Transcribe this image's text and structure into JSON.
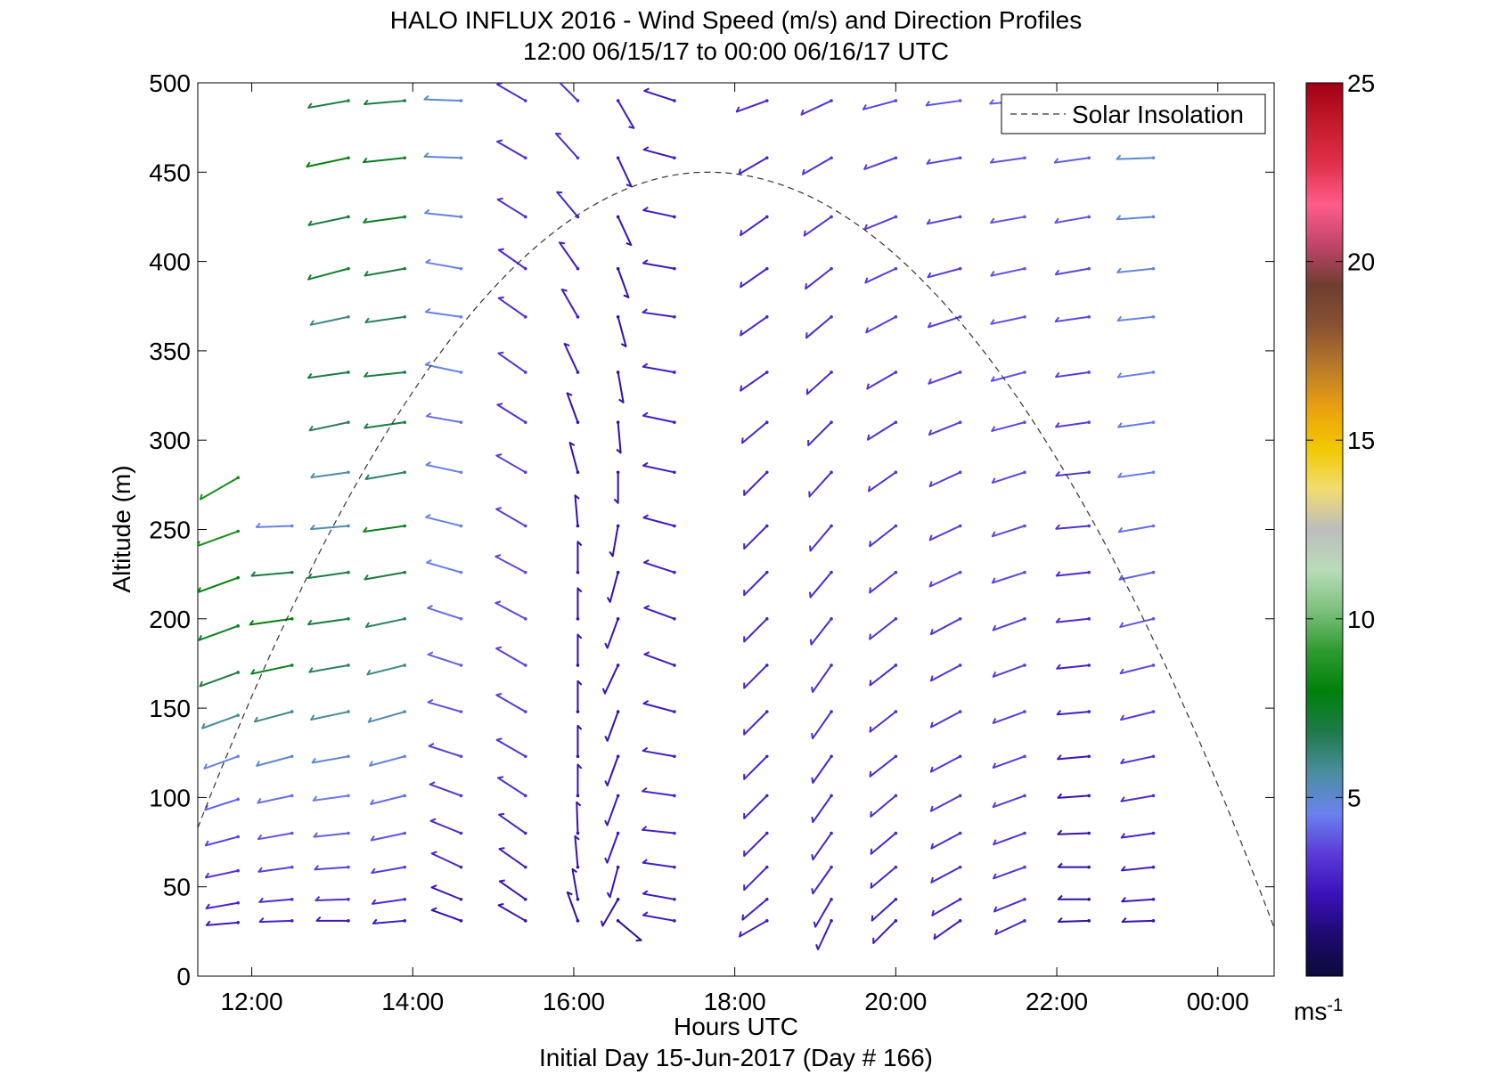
{
  "chart_data": {
    "type": "wind_barb_profile",
    "title": "HALO INFLUX 2016 - Wind Speed (m/s) and Direction Profiles",
    "subtitle": "12:00 06/15/17 to 00:00 06/16/17  UTC",
    "xlabel": "Hours UTC",
    "footer": "Initial Day 15-Jun-2017 (Day # 166)",
    "ylabel": "Altitude (m)",
    "x_range_hours": [
      11.33,
      24.7
    ],
    "ylim": [
      0,
      500
    ],
    "x_tick_labels": [
      "12:00",
      "14:00",
      "16:00",
      "18:00",
      "20:00",
      "22:00",
      "00:00"
    ],
    "x_tick_hours": [
      12,
      14,
      16,
      18,
      20,
      22,
      24
    ],
    "y_ticks": [
      0,
      50,
      100,
      150,
      200,
      250,
      300,
      350,
      400,
      450,
      500
    ],
    "legend": {
      "label": "Solar Insolation",
      "placement": "top-right",
      "style": "dashed"
    },
    "solar_insolation": {
      "start_hour": 11.33,
      "peak_hour": 17.67,
      "end_hour": 24.7,
      "start_alt": 83,
      "peak_alt": 450,
      "end_alt": 27
    },
    "colorbar": {
      "range": [
        0,
        25
      ],
      "tick_labels": [
        "5",
        "10",
        "15",
        "20",
        "25"
      ],
      "tick_values": [
        5,
        10,
        15,
        20,
        25
      ],
      "unit_label": "ms",
      "unit_exponent": "-1",
      "colors": [
        "#0b0b3a",
        "#1e0a6e",
        "#3a10b8",
        "#5a3ad8",
        "#6a82ee",
        "#4a8fa0",
        "#1f7a4a",
        "#00800a",
        "#2e9a2e",
        "#7cc07c",
        "#b9dcb9",
        "#bdbdbd",
        "#f2dc70",
        "#f2c800",
        "#eaa010",
        "#b87a2a",
        "#8a5232",
        "#6e3e30",
        "#c0456a",
        "#ff5c8a",
        "#e0304a",
        "#c41a2a",
        "#a00014"
      ]
    },
    "wind_field_note": "",
    "series": [
      {
        "hour": 11.83,
        "altitudes": [
          30,
          41,
          59,
          78,
          99,
          123,
          146,
          170,
          196,
          223,
          249,
          279
        ],
        "speed": [
          2.5,
          2.8,
          3.2,
          3.5,
          4.0,
          4.6,
          5.8,
          7.0,
          7.5,
          8.0,
          8.5,
          8.5
        ],
        "dir_deg": [
          265,
          260,
          258,
          255,
          252,
          250,
          250,
          250,
          250,
          250,
          250,
          240
        ]
      },
      {
        "hour": 12.5,
        "altitudes": [
          31,
          43,
          61,
          80,
          101,
          123,
          148,
          174,
          200,
          226,
          252
        ],
        "speed": [
          2.8,
          3.0,
          3.5,
          3.8,
          4.2,
          5.0,
          6.0,
          7.5,
          8.0,
          7.0,
          4.5
        ],
        "dir_deg": [
          268,
          265,
          262,
          260,
          258,
          255,
          255,
          258,
          262,
          265,
          268
        ]
      },
      {
        "hour": 13.2,
        "altitudes": [
          31,
          43,
          61,
          80,
          101,
          123,
          148,
          174,
          200,
          226,
          252,
          282,
          310,
          338,
          369,
          396,
          425,
          458,
          490
        ],
        "speed": [
          2.5,
          3.0,
          3.5,
          4.0,
          4.4,
          5.0,
          5.8,
          6.5,
          7.0,
          7.0,
          5.5,
          5.5,
          6.5,
          7.0,
          6.0,
          7.5,
          7.0,
          8.0,
          7.0
        ],
        "dir_deg": [
          270,
          268,
          266,
          264,
          262,
          260,
          258,
          260,
          262,
          262,
          265,
          262,
          258,
          262,
          258,
          255,
          258,
          258,
          260
        ]
      },
      {
        "hour": 13.9,
        "altitudes": [
          31,
          43,
          61,
          80,
          101,
          123,
          148,
          174,
          200,
          226,
          252,
          282,
          310,
          338,
          369,
          396,
          425,
          458,
          490
        ],
        "speed": [
          2.5,
          3.0,
          3.4,
          3.8,
          4.2,
          4.8,
          5.5,
          6.0,
          6.5,
          7.0,
          7.5,
          6.5,
          7.0,
          7.0,
          6.5,
          7.0,
          7.5,
          7.5,
          7.0
        ],
        "dir_deg": [
          265,
          262,
          260,
          258,
          256,
          255,
          254,
          256,
          258,
          260,
          262,
          260,
          262,
          264,
          262,
          260,
          262,
          264,
          265
        ]
      },
      {
        "hour": 14.6,
        "altitudes": [
          31,
          43,
          61,
          80,
          101,
          123,
          148,
          174,
          200,
          226,
          252,
          282,
          310,
          338,
          369,
          396,
          425,
          458,
          490
        ],
        "speed": [
          2.2,
          2.5,
          2.8,
          3.0,
          3.2,
          3.5,
          3.8,
          4.0,
          4.2,
          4.5,
          4.8,
          4.5,
          4.2,
          4.8,
          4.5,
          4.5,
          4.8,
          5.0,
          5.0
        ],
        "dir_deg": [
          290,
          292,
          295,
          292,
          290,
          288,
          286,
          288,
          288,
          286,
          284,
          282,
          280,
          282,
          278,
          280,
          276,
          272,
          272
        ]
      },
      {
        "hour": 15.4,
        "altitudes": [
          31,
          43,
          61,
          80,
          101,
          123,
          148,
          174,
          200,
          226,
          252,
          282,
          310,
          338,
          369,
          396,
          425,
          458,
          490
        ],
        "speed": [
          2.2,
          2.4,
          2.6,
          2.8,
          3.0,
          3.2,
          3.4,
          3.5,
          3.6,
          3.6,
          3.5,
          3.4,
          3.2,
          3.2,
          3.0,
          3.0,
          3.0,
          3.0,
          3.0
        ],
        "dir_deg": [
          300,
          305,
          305,
          305,
          303,
          300,
          300,
          300,
          298,
          298,
          300,
          300,
          302,
          305,
          305,
          305,
          302,
          300,
          300
        ]
      },
      {
        "hour": 16.05,
        "altitudes": [
          31,
          43,
          61,
          80,
          101,
          123,
          148,
          174,
          200,
          226,
          252,
          282,
          310,
          338,
          369,
          396,
          425,
          458,
          490
        ],
        "speed": [
          1.8,
          2.0,
          2.2,
          2.2,
          2.2,
          2.0,
          2.0,
          2.0,
          2.0,
          2.0,
          2.0,
          2.0,
          2.2,
          2.4,
          2.5,
          2.6,
          2.8,
          3.0,
          3.0
        ],
        "dir_deg": [
          340,
          350,
          355,
          358,
          0,
          0,
          0,
          0,
          0,
          0,
          355,
          345,
          340,
          335,
          330,
          325,
          320,
          318,
          315
        ]
      },
      {
        "hour": 16.55,
        "altitudes": [
          31,
          43,
          61,
          80,
          101,
          123,
          148,
          174,
          200,
          226,
          252,
          282,
          310,
          338,
          369,
          396,
          425,
          458,
          490
        ],
        "speed": [
          1.8,
          2.0,
          2.2,
          2.4,
          2.4,
          2.2,
          2.2,
          2.2,
          2.2,
          2.0,
          2.0,
          2.0,
          2.0,
          2.0,
          2.0,
          2.0,
          2.2,
          2.4,
          2.5
        ],
        "dir_deg": [
          130,
          210,
          195,
          200,
          200,
          200,
          200,
          205,
          200,
          195,
          190,
          180,
          175,
          170,
          165,
          160,
          155,
          155,
          150
        ]
      },
      {
        "hour": 17.25,
        "altitudes": [
          31,
          43,
          61,
          80,
          101,
          123,
          148,
          174,
          200,
          226,
          252,
          282,
          310,
          338,
          369,
          396,
          425,
          458,
          490
        ],
        "speed": [
          2.5,
          2.5,
          2.6,
          2.8,
          2.8,
          2.6,
          2.6,
          2.6,
          2.6,
          2.6,
          2.6,
          2.6,
          2.6,
          2.6,
          2.6,
          2.5,
          2.5,
          2.5,
          2.5
        ],
        "dir_deg": [
          280,
          280,
          278,
          276,
          278,
          280,
          285,
          290,
          290,
          288,
          285,
          282,
          282,
          280,
          278,
          280,
          282,
          285,
          288
        ]
      },
      {
        "hour": 18.4,
        "altitudes": [
          31,
          43,
          61,
          80,
          101,
          123,
          148,
          174,
          200,
          226,
          252,
          282,
          310,
          338,
          369,
          396,
          425,
          458,
          490
        ],
        "speed": [
          2.5,
          2.6,
          2.8,
          2.8,
          2.8,
          2.8,
          2.8,
          2.8,
          2.8,
          2.8,
          2.8,
          2.8,
          2.8,
          2.8,
          2.8,
          2.8,
          2.8,
          2.8,
          2.8
        ],
        "dir_deg": [
          240,
          230,
          225,
          225,
          225,
          225,
          225,
          225,
          225,
          225,
          225,
          225,
          230,
          235,
          235,
          235,
          235,
          240,
          250
        ]
      },
      {
        "hour": 19.2,
        "altitudes": [
          31,
          43,
          61,
          80,
          101,
          123,
          148,
          174,
          200,
          226,
          252,
          282,
          310,
          338,
          369,
          396,
          425,
          458,
          490
        ],
        "speed": [
          2.5,
          2.6,
          2.8,
          2.8,
          2.8,
          2.8,
          3.0,
          3.0,
          3.0,
          3.0,
          3.0,
          3.0,
          3.0,
          3.0,
          3.0,
          3.0,
          3.2,
          3.2,
          3.2
        ],
        "dir_deg": [
          205,
          210,
          215,
          215,
          215,
          215,
          215,
          215,
          218,
          220,
          220,
          222,
          225,
          228,
          230,
          232,
          235,
          240,
          245
        ]
      },
      {
        "hour": 20.0,
        "altitudes": [
          31,
          43,
          61,
          80,
          101,
          123,
          148,
          174,
          200,
          226,
          252,
          282,
          310,
          338,
          369,
          396,
          425,
          458,
          490
        ],
        "speed": [
          2.5,
          2.6,
          2.8,
          2.8,
          3.0,
          3.0,
          3.0,
          3.0,
          3.2,
          3.2,
          3.2,
          3.2,
          3.2,
          3.2,
          3.4,
          3.4,
          3.4,
          3.4,
          3.5
        ],
        "dir_deg": [
          225,
          228,
          230,
          230,
          230,
          232,
          232,
          232,
          232,
          232,
          232,
          235,
          238,
          240,
          242,
          245,
          248,
          250,
          255
        ]
      },
      {
        "hour": 20.8,
        "altitudes": [
          31,
          43,
          61,
          80,
          101,
          123,
          148,
          174,
          200,
          226,
          252,
          282,
          310,
          338,
          369,
          396,
          425,
          458,
          490
        ],
        "speed": [
          2.5,
          2.8,
          3.0,
          3.0,
          3.2,
          3.2,
          3.2,
          3.2,
          3.2,
          3.4,
          3.4,
          3.4,
          3.4,
          3.4,
          3.4,
          3.4,
          3.5,
          3.5,
          3.8
        ],
        "dir_deg": [
          235,
          240,
          242,
          242,
          242,
          242,
          242,
          242,
          242,
          245,
          245,
          245,
          248,
          250,
          252,
          255,
          258,
          260,
          262
        ]
      },
      {
        "hour": 21.6,
        "altitudes": [
          31,
          43,
          61,
          80,
          101,
          123,
          148,
          174,
          200,
          226,
          252,
          282,
          310,
          338,
          369,
          396,
          425,
          458,
          490
        ],
        "speed": [
          2.8,
          3.0,
          3.2,
          3.2,
          3.4,
          3.4,
          3.4,
          3.4,
          3.4,
          3.6,
          3.6,
          3.6,
          3.6,
          3.8,
          3.8,
          3.8,
          3.8,
          3.8,
          4.0
        ],
        "dir_deg": [
          245,
          248,
          250,
          250,
          250,
          250,
          250,
          250,
          250,
          252,
          252,
          252,
          255,
          255,
          258,
          258,
          260,
          262,
          265
        ]
      },
      {
        "hour": 22.4,
        "altitudes": [
          31,
          43,
          61,
          80,
          101,
          123,
          148,
          174,
          200,
          226,
          252,
          282,
          310,
          338,
          369,
          396,
          425,
          458
        ],
        "speed": [
          2.0,
          2.0,
          2.0,
          2.2,
          2.2,
          2.4,
          2.6,
          2.8,
          3.0,
          3.0,
          3.2,
          3.2,
          3.4,
          3.4,
          3.6,
          3.6,
          3.8,
          4.0
        ],
        "dir_deg": [
          268,
          270,
          270,
          268,
          266,
          265,
          265,
          264,
          264,
          264,
          265,
          264,
          262,
          262,
          262,
          260,
          260,
          262
        ]
      },
      {
        "hour": 23.2,
        "altitudes": [
          31,
          43,
          61,
          80,
          101,
          123,
          148,
          174,
          200,
          226,
          252,
          282,
          310,
          338,
          369,
          396,
          425,
          458
        ],
        "speed": [
          2.2,
          2.4,
          2.6,
          2.8,
          3.0,
          3.2,
          3.4,
          3.6,
          3.8,
          4.0,
          4.2,
          4.4,
          4.4,
          4.6,
          4.6,
          4.8,
          5.0,
          5.0
        ],
        "dir_deg": [
          268,
          266,
          264,
          262,
          260,
          258,
          256,
          256,
          256,
          258,
          260,
          262,
          262,
          262,
          264,
          264,
          266,
          268
        ]
      }
    ]
  }
}
